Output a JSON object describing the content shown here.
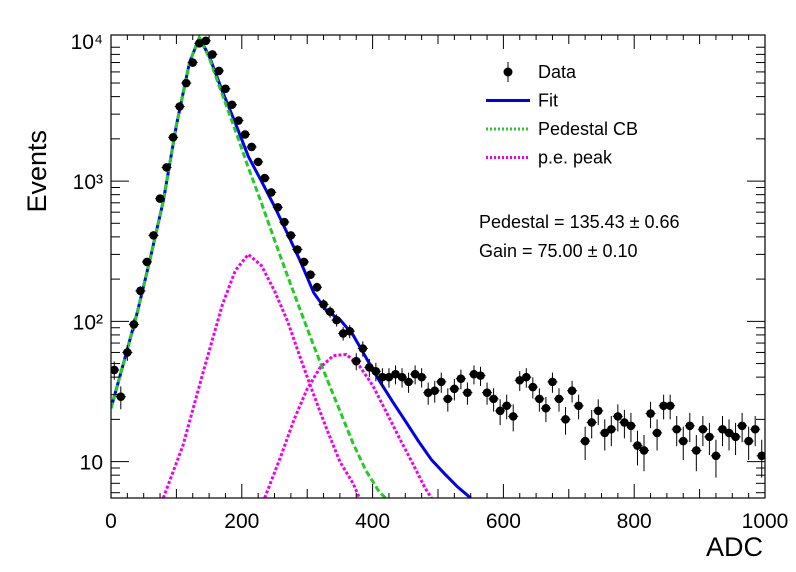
{
  "chart_data": {
    "type": "scatter",
    "title": "",
    "xlabel": "ADC",
    "ylabel": "Events",
    "xlim": [
      0,
      1000
    ],
    "ylim": [
      5.5,
      11000
    ],
    "yscale": "log",
    "grid": false,
    "legend_position": "top-right",
    "x_ticks": [
      0,
      200,
      400,
      600,
      800,
      1000
    ],
    "x_tick_labels": [
      "0",
      "200",
      "400",
      "600",
      "800",
      "1000"
    ],
    "y_ticks": [
      10,
      100,
      1000,
      10000
    ],
    "y_tick_labels": [
      "10",
      "10²",
      "10³",
      "10⁴"
    ],
    "legend": [
      {
        "label": "Data",
        "style": "marker",
        "color": "#000000"
      },
      {
        "label": "Fit",
        "style": "solid",
        "color": "#0000ee"
      },
      {
        "label": "Pedestal CB",
        "style": "dotted",
        "color": "#22cc22"
      },
      {
        "label": "p.e. peak",
        "style": "dotted",
        "color": "#ee00ee"
      }
    ],
    "annotations": [
      "Pedestal = 135.43 ± 0.66",
      "Gain = 75.00 ± 0.10"
    ],
    "series": [
      {
        "name": "Data",
        "style": "points",
        "color": "#000000",
        "x": [
          5,
          15,
          25,
          35,
          45,
          55,
          65,
          75,
          85,
          95,
          105,
          115,
          125,
          135,
          145,
          155,
          165,
          175,
          185,
          195,
          205,
          215,
          225,
          235,
          245,
          255,
          265,
          275,
          285,
          295,
          305,
          315,
          325,
          335,
          345,
          355,
          365,
          375,
          385,
          395,
          405,
          415,
          425,
          435,
          445,
          455,
          465,
          475,
          485,
          495,
          505,
          515,
          525,
          535,
          545,
          555,
          565,
          575,
          585,
          595,
          605,
          615,
          625,
          635,
          645,
          655,
          665,
          675,
          685,
          695,
          705,
          715,
          725,
          735,
          745,
          755,
          765,
          775,
          785,
          795,
          805,
          815,
          825,
          835,
          845,
          855,
          865,
          875,
          885,
          895,
          905,
          915,
          925,
          935,
          945,
          955,
          965,
          975,
          985,
          995
        ],
        "y": [
          45,
          29,
          60,
          95,
          165,
          265,
          410,
          750,
          1250,
          2050,
          3400,
          5000,
          7000,
          9600,
          10000,
          8000,
          6100,
          4550,
          3500,
          2700,
          2150,
          1750,
          1370,
          1050,
          830,
          650,
          510,
          410,
          325,
          265,
          215,
          175,
          132,
          117,
          102,
          82,
          85,
          52,
          64,
          47,
          44,
          40,
          40,
          42,
          40,
          37,
          42,
          40,
          31,
          32,
          37,
          28,
          33,
          39,
          31,
          42,
          41,
          31,
          28,
          23,
          25,
          21,
          38,
          40,
          34,
          28,
          24,
          37,
          28,
          20,
          32,
          25,
          14,
          19,
          23,
          16,
          17,
          21,
          19,
          18,
          13,
          12,
          22,
          16,
          25,
          25,
          17,
          14,
          18,
          12,
          17,
          15,
          11,
          17,
          16,
          15,
          18,
          14,
          17,
          11
        ]
      },
      {
        "name": "Fit",
        "style": "solid",
        "color": "#0000ee",
        "x": [
          0,
          20,
          40,
          60,
          80,
          100,
          120,
          135,
          150,
          170,
          190,
          210,
          230,
          250,
          270,
          290,
          310,
          330,
          350,
          370,
          390,
          410,
          430,
          450,
          470,
          490,
          510,
          530,
          550
        ],
        "y": [
          24,
          52,
          115,
          280,
          720,
          2500,
          7000,
          10500,
          7800,
          4400,
          2600,
          1500,
          1000,
          660,
          420,
          265,
          160,
          118,
          103,
          80,
          55,
          38,
          27,
          19.5,
          14,
          10.3,
          8.2,
          6.6,
          5.5
        ]
      },
      {
        "name": "Pedestal CB",
        "style": "dotted",
        "color": "#22cc22",
        "x": [
          0,
          20,
          40,
          60,
          80,
          100,
          120,
          135,
          150,
          170,
          190,
          210,
          230,
          250,
          270,
          290,
          310,
          330,
          350,
          370,
          390,
          410,
          420
        ],
        "y": [
          24,
          52,
          115,
          280,
          720,
          2500,
          7000,
          10500,
          7600,
          4150,
          2300,
          1250,
          700,
          380,
          210,
          118,
          67,
          39,
          23,
          13.5,
          8.6,
          6.1,
          5.5
        ]
      },
      {
        "name": "p.e. peak",
        "style": "dotted",
        "color": "#ee00ee",
        "x": [
          80,
          110,
          140,
          170,
          190,
          210,
          230,
          250,
          270,
          290,
          310,
          330,
          350,
          370,
          380
        ],
        "y": [
          5.5,
          13,
          42,
          130,
          230,
          300,
          250,
          165,
          100,
          54,
          30,
          17,
          10,
          7,
          5.5
        ]
      },
      {
        "name": "p.e. peak (2nd)",
        "style": "dotted",
        "color": "#ee00ee",
        "x": [
          235,
          260,
          280,
          300,
          320,
          340,
          360,
          380,
          400,
          420,
          440,
          460,
          480,
          490
        ],
        "y": [
          5.5,
          11,
          20,
          33,
          47,
          57,
          58,
          48,
          35,
          23,
          15,
          10,
          6.5,
          5.5
        ]
      }
    ]
  }
}
